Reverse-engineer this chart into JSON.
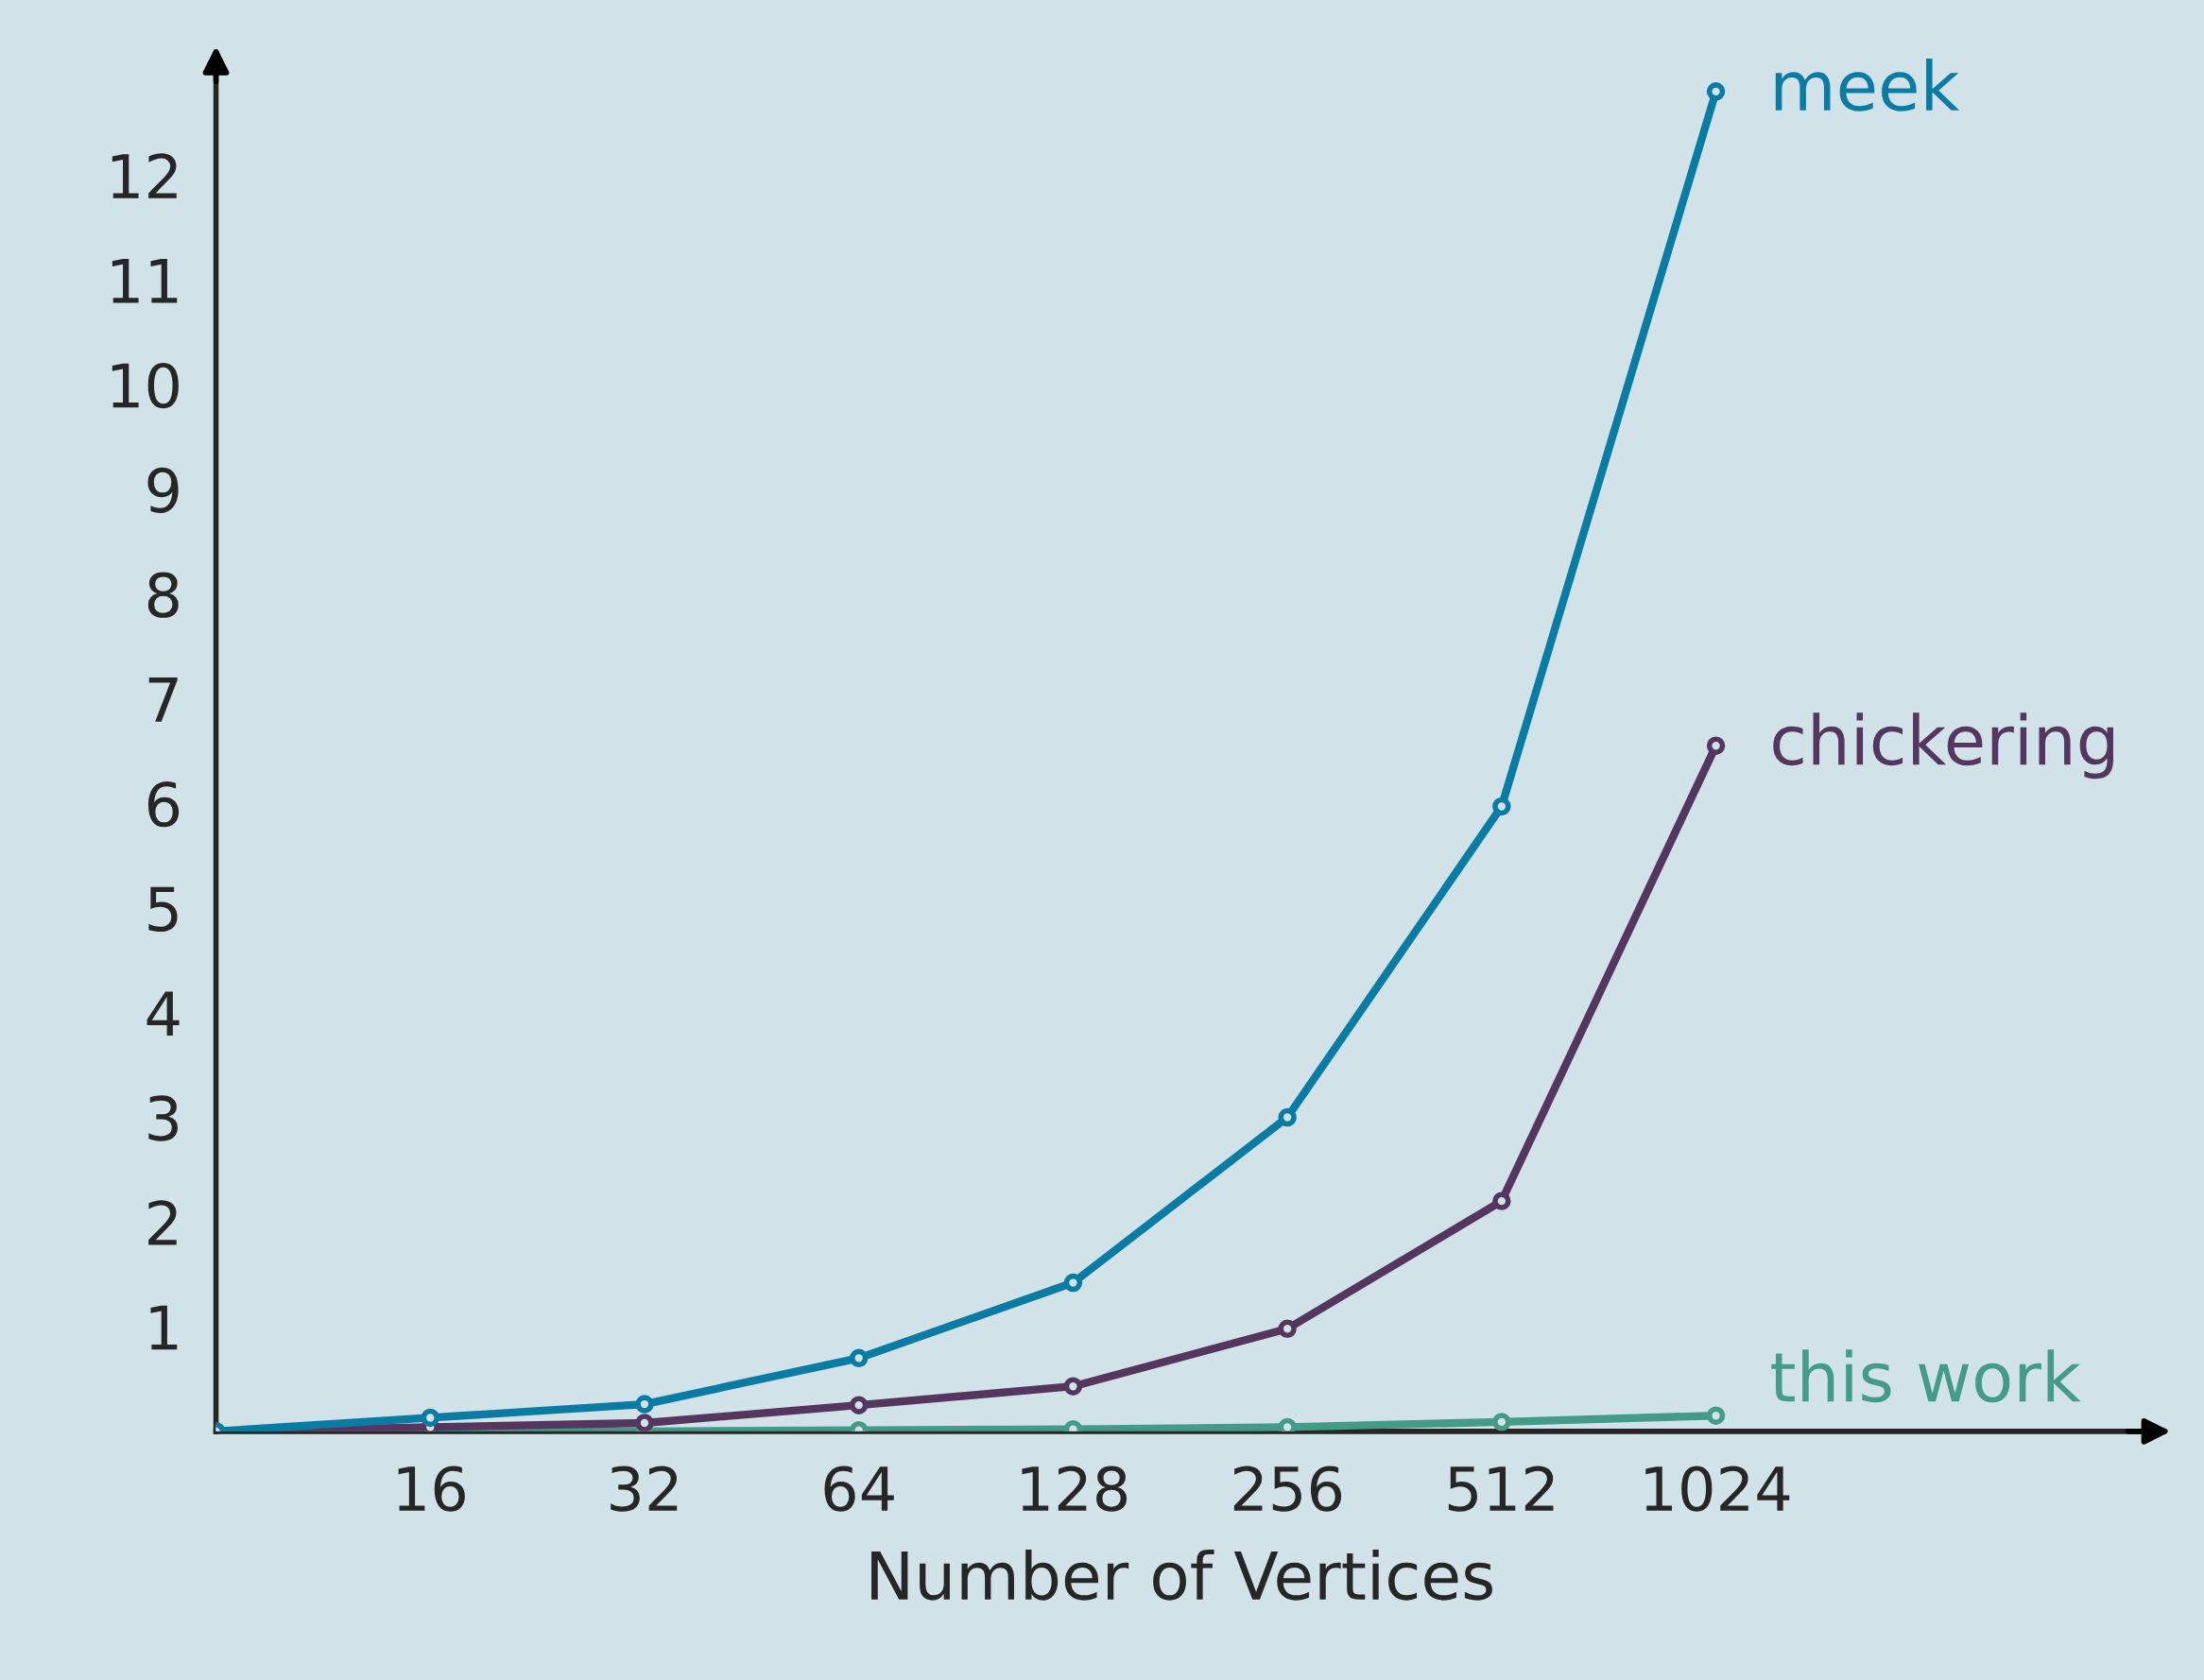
{
  "chart_data": {
    "type": "line",
    "xlabel": "Number of Vertices",
    "categories": [
      null,
      "16",
      "32",
      "64",
      "128",
      "256",
      "512",
      "1024"
    ],
    "series": [
      {
        "name": "meek",
        "color": "#0a7ca3",
        "values": [
          0,
          0.13,
          0.26,
          0.7,
          1.42,
          3.0,
          5.97,
          12.8
        ]
      },
      {
        "name": "chickering",
        "color": "#55365f",
        "values": [
          0,
          0.04,
          0.08,
          0.25,
          0.43,
          0.98,
          2.2,
          6.55
        ]
      },
      {
        "name": "this work",
        "color": "#449c88",
        "values": [
          0,
          0.0,
          0.0,
          0.01,
          0.02,
          0.04,
          0.09,
          0.15
        ]
      }
    ],
    "ylim": [
      0,
      13
    ],
    "yticks": [
      1,
      2,
      3,
      4,
      5,
      6,
      7,
      8,
      9,
      10,
      11,
      12
    ],
    "marker": "circle",
    "line_style": "solid",
    "grid": false,
    "legend": false
  }
}
